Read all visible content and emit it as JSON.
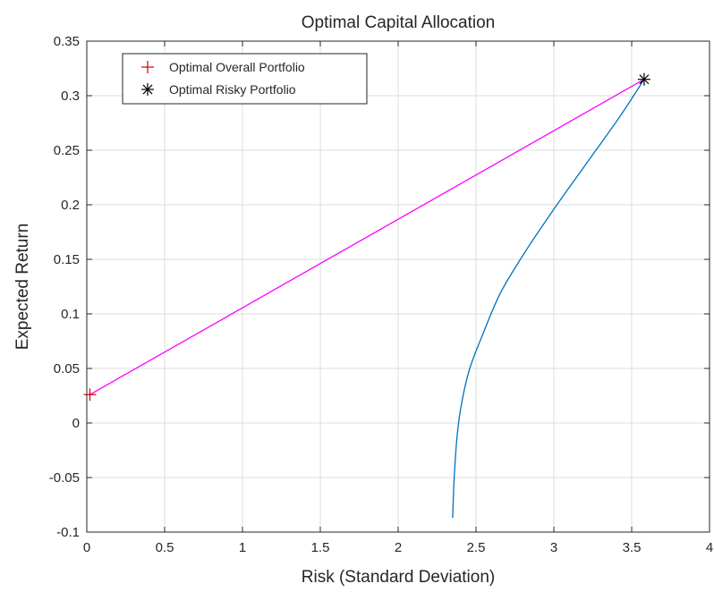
{
  "chart_data": {
    "type": "line",
    "title": "Optimal Capital Allocation",
    "xlabel": "Risk (Standard Deviation)",
    "ylabel": "Expected  Return",
    "xlim": [
      0,
      4
    ],
    "ylim": [
      -0.1,
      0.35
    ],
    "xticks": [
      0,
      0.5,
      1,
      1.5,
      2,
      2.5,
      3,
      3.5,
      4
    ],
    "xtick_labels": [
      "0",
      "0.5",
      "1",
      "1.5",
      "2",
      "2.5",
      "3",
      "3.5",
      "4"
    ],
    "yticks": [
      -0.1,
      -0.05,
      0,
      0.05,
      0.1,
      0.15,
      0.2,
      0.25,
      0.3,
      0.35
    ],
    "ytick_labels": [
      "-0.1",
      "-0.05",
      "0",
      "0.05",
      "0.1",
      "0.15",
      "0.2",
      "0.25",
      "0.3",
      "0.35"
    ],
    "grid": true,
    "legend_position": "top-left",
    "series": [
      {
        "kind": "line",
        "color": "#0072BD",
        "x": [
          2.35,
          2.36,
          2.38,
          2.41,
          2.46,
          2.54,
          2.66,
          2.83,
          3.02,
          3.22,
          3.42,
          3.58
        ],
        "y": [
          -0.087,
          -0.05,
          -0.01,
          0.02,
          0.05,
          0.08,
          0.12,
          0.16,
          0.2,
          0.24,
          0.28,
          0.315
        ]
      },
      {
        "kind": "line",
        "color": "#FF00FF",
        "x": [
          0.02,
          3.58
        ],
        "y": [
          0.026,
          0.315
        ]
      },
      {
        "kind": "marker",
        "name": "Optimal Overall Portfolio",
        "marker": "+",
        "color": "#D00000",
        "x": [
          0.02
        ],
        "y": [
          0.026
        ]
      },
      {
        "kind": "marker",
        "name": "Optimal Risky Portfolio",
        "marker": "*",
        "color": "#000000",
        "x": [
          3.58
        ],
        "y": [
          0.315
        ]
      }
    ]
  }
}
